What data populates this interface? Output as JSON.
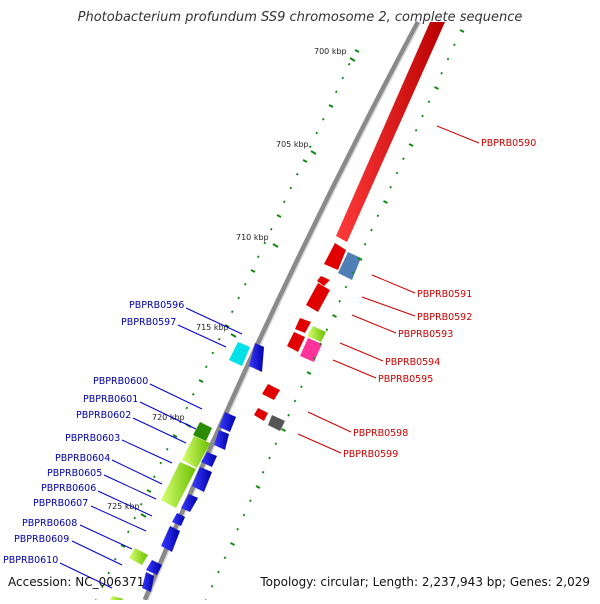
{
  "title": "Photobacterium profundum SS9 chromosome 2, complete sequence",
  "footer": {
    "accession": "Accession: NC_006371",
    "summary": "Topology: circular; Length: 2,237,943 bp; Genes: 2,029"
  },
  "kbp_ticks": [
    "700 kbp",
    "705 kbp",
    "710 kbp",
    "715 kbp",
    "720 kbp",
    "725 kbp"
  ],
  "genes_forward": [
    "PBPRB0590",
    "PBPRB0591",
    "PBPRB0592",
    "PBPRB0593",
    "PBPRB0594",
    "PBPRB0595",
    "PBPRB0598",
    "PBPRB0599"
  ],
  "genes_reverse": [
    "PBPRB0596",
    "PBPRB0597",
    "PBPRB0600",
    "PBPRB0601",
    "PBPRB0602",
    "PBPRB0603",
    "PBPRB0604",
    "PBPRB0605",
    "PBPRB0606",
    "PBPRB0607",
    "PBPRB0608",
    "PBPRB0609",
    "PBPRB0610"
  ],
  "colors": {
    "forward_label": "#cc0000",
    "reverse_label": "#0000aa",
    "backbone": "#888888",
    "tick": "#118811"
  }
}
